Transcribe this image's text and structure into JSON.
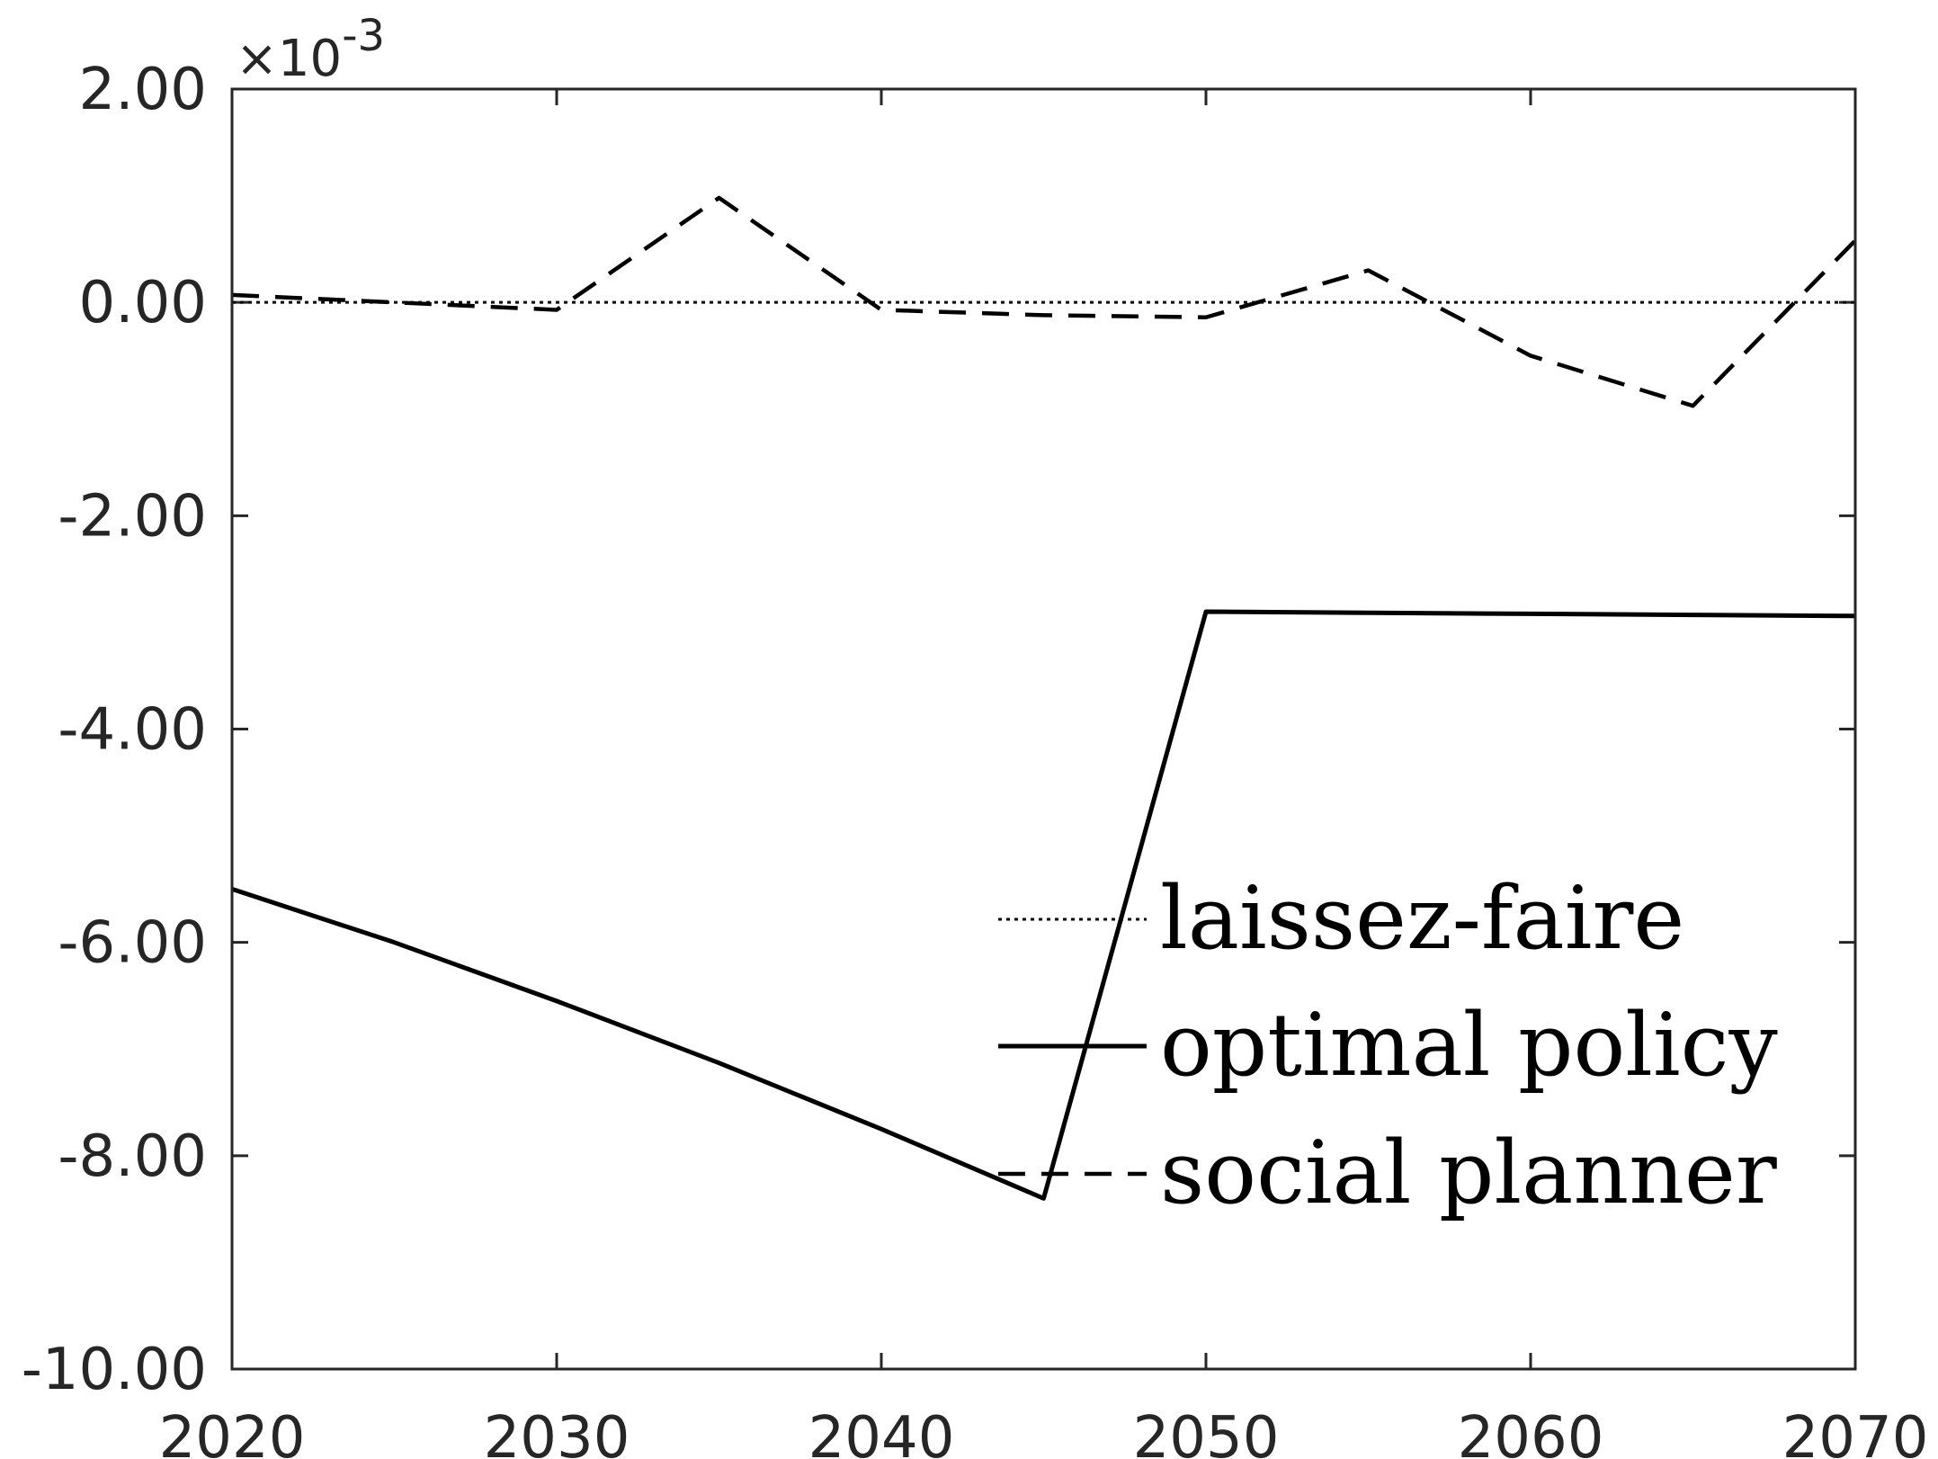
{
  "chart_data": {
    "type": "line",
    "title": "",
    "xlabel": "",
    "ylabel": "",
    "y_multiplier_label": "×10",
    "y_multiplier_exponent": "-3",
    "xlim": [
      2020,
      2070
    ],
    "ylim": [
      -10.0,
      2.0
    ],
    "xticks": [
      2020,
      2030,
      2040,
      2050,
      2060,
      2070
    ],
    "xtick_labels": [
      "2020",
      "2030",
      "2040",
      "2050",
      "2060",
      "2070"
    ],
    "yticks": [
      2.0,
      0.0,
      -2.0,
      -4.0,
      -6.0,
      -8.0,
      -10.0
    ],
    "ytick_labels": [
      "2.00",
      "0.00",
      "-2.00",
      "-4.00",
      "-6.00",
      "-8.00",
      "-10.00"
    ],
    "grid": false,
    "legend_position": "bottom-right",
    "x": [
      2020,
      2025,
      2030,
      2035,
      2040,
      2045,
      2050,
      2055,
      2060,
      2065,
      2070
    ],
    "series": [
      {
        "name": "laissez-faire",
        "style": "dotted",
        "color": "#000000",
        "values": [
          0,
          0,
          0,
          0,
          0,
          0,
          0,
          0,
          0,
          0,
          0
        ]
      },
      {
        "name": "optimal policy",
        "style": "solid",
        "color": "#000000",
        "values": [
          -5.5,
          -6.0,
          -6.55,
          -7.13,
          -7.75,
          -8.4,
          -2.9,
          -2.91,
          -2.92,
          -2.93,
          -2.94
        ]
      },
      {
        "name": "social planner",
        "style": "dashed",
        "color": "#000000",
        "values": [
          0.07,
          0.0,
          -0.07,
          0.98,
          -0.07,
          -0.12,
          -0.14,
          0.3,
          -0.5,
          -0.97,
          0.58
        ]
      }
    ]
  }
}
